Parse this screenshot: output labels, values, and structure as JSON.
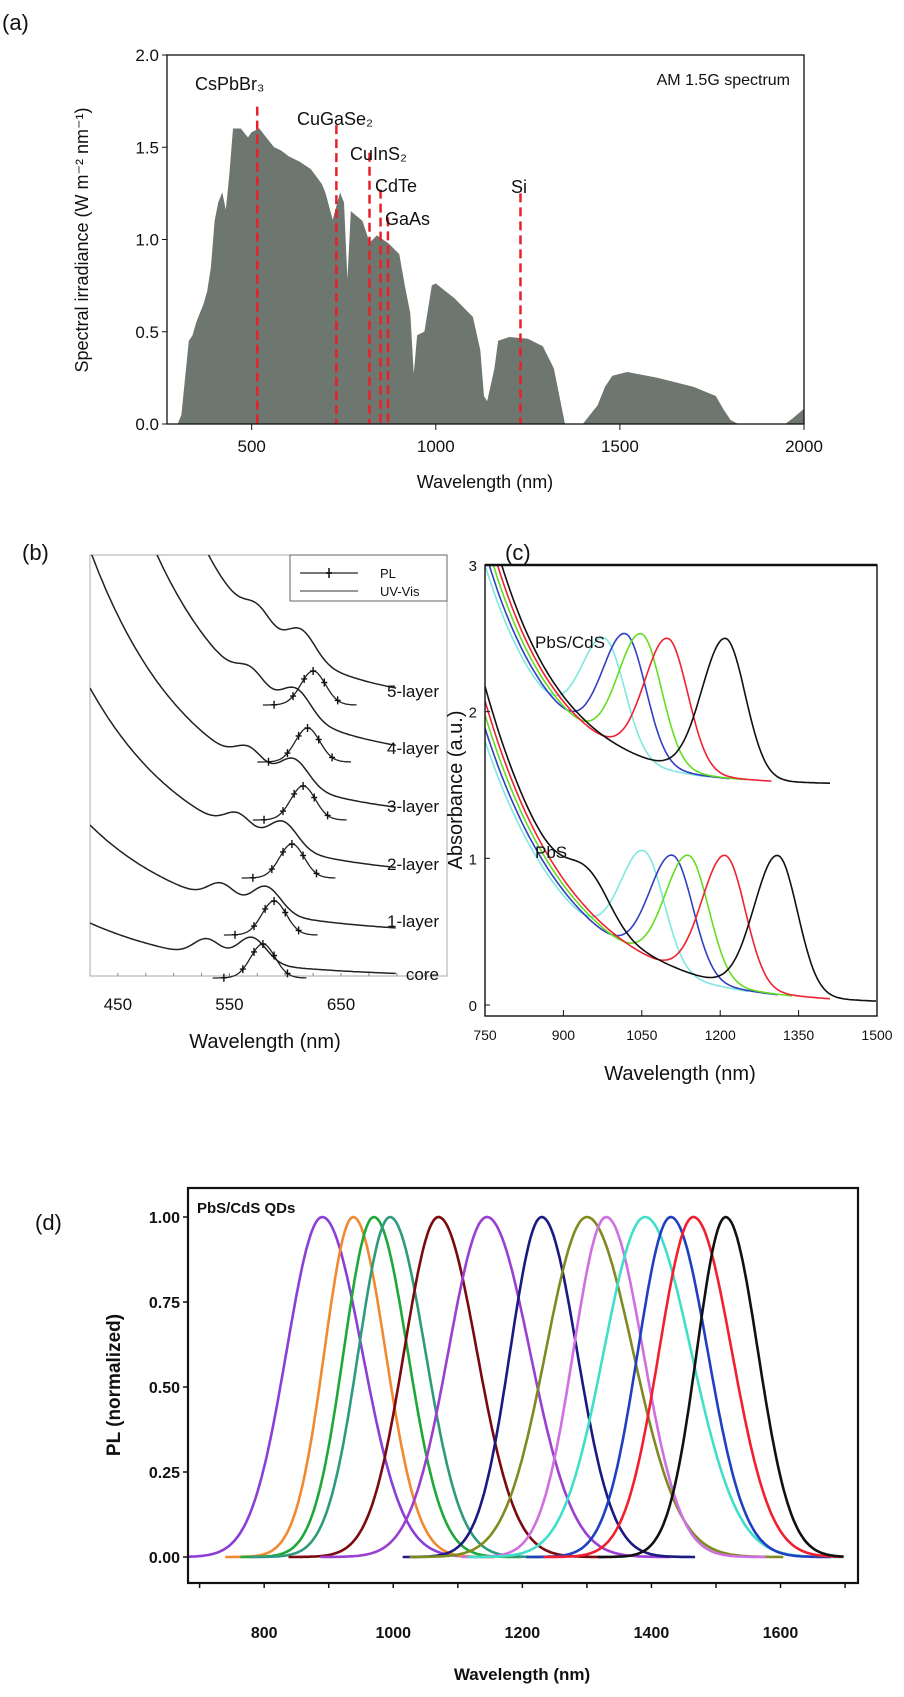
{
  "chart_data": [
    {
      "panel": "(a)",
      "type": "area",
      "xlabel": "Wavelength (nm)",
      "ylabel": "Spectral irradiance (W m⁻² nm⁻¹)",
      "xlim": [
        270,
        2000
      ],
      "ylim": [
        0,
        2.0
      ],
      "xticks": [
        "500",
        "1000",
        "1500",
        "2000"
      ],
      "yticks": [
        "0.0",
        "0.5",
        "1.0",
        "1.5",
        "2.0"
      ],
      "annotation": "AM 1.5G spectrum",
      "fill_color": "#6e7670",
      "spectrum": [
        [
          280,
          0
        ],
        [
          300,
          0
        ],
        [
          310,
          0.05
        ],
        [
          320,
          0.25
        ],
        [
          330,
          0.45
        ],
        [
          340,
          0.48
        ],
        [
          350,
          0.55
        ],
        [
          370,
          0.65
        ],
        [
          380,
          0.72
        ],
        [
          390,
          0.85
        ],
        [
          400,
          1.1
        ],
        [
          410,
          1.2
        ],
        [
          420,
          1.25
        ],
        [
          430,
          1.15
        ],
        [
          440,
          1.35
        ],
        [
          450,
          1.6
        ],
        [
          470,
          1.6
        ],
        [
          490,
          1.55
        ],
        [
          500,
          1.58
        ],
        [
          520,
          1.6
        ],
        [
          540,
          1.55
        ],
        [
          560,
          1.5
        ],
        [
          580,
          1.48
        ],
        [
          600,
          1.45
        ],
        [
          630,
          1.42
        ],
        [
          660,
          1.38
        ],
        [
          690,
          1.3
        ],
        [
          700,
          1.25
        ],
        [
          720,
          1.1
        ],
        [
          740,
          1.25
        ],
        [
          750,
          1.2
        ],
        [
          760,
          0.75
        ],
        [
          770,
          1.15
        ],
        [
          800,
          1.1
        ],
        [
          820,
          0.98
        ],
        [
          840,
          1.02
        ],
        [
          870,
          0.98
        ],
        [
          900,
          0.92
        ],
        [
          915,
          0.75
        ],
        [
          930,
          0.6
        ],
        [
          940,
          0.25
        ],
        [
          950,
          0.48
        ],
        [
          970,
          0.5
        ],
        [
          990,
          0.75
        ],
        [
          1000,
          0.76
        ],
        [
          1050,
          0.68
        ],
        [
          1100,
          0.58
        ],
        [
          1120,
          0.4
        ],
        [
          1130,
          0.15
        ],
        [
          1140,
          0.12
        ],
        [
          1160,
          0.3
        ],
        [
          1170,
          0.45
        ],
        [
          1200,
          0.47
        ],
        [
          1250,
          0.46
        ],
        [
          1290,
          0.42
        ],
        [
          1320,
          0.3
        ],
        [
          1340,
          0.1
        ],
        [
          1350,
          0
        ],
        [
          1400,
          0
        ],
        [
          1420,
          0.05
        ],
        [
          1440,
          0.1
        ],
        [
          1460,
          0.2
        ],
        [
          1480,
          0.26
        ],
        [
          1520,
          0.28
        ],
        [
          1600,
          0.25
        ],
        [
          1700,
          0.2
        ],
        [
          1760,
          0.15
        ],
        [
          1780,
          0.08
        ],
        [
          1800,
          0.02
        ],
        [
          1820,
          0
        ],
        [
          1950,
          0
        ],
        [
          1970,
          0.03
        ],
        [
          2000,
          0.08
        ]
      ],
      "markers": [
        {
          "label": "CsPbBr₃",
          "x": 515,
          "top": 1.72
        },
        {
          "label": "CuGaSe₂",
          "x": 730,
          "top": 1.62
        },
        {
          "label": "CuInS₂",
          "x": 820,
          "top": 1.47
        },
        {
          "label": "CdTe",
          "x": 850,
          "top": 1.27
        },
        {
          "label": "GaAs",
          "x": 870,
          "top": 1.12
        },
        {
          "label": "Si",
          "x": 1230,
          "top": 1.25
        }
      ],
      "marker_color": "#e8202a"
    },
    {
      "panel": "(b)",
      "type": "line",
      "xlabel": "Wavelength (nm)",
      "xlim": [
        425,
        745
      ],
      "xticks": [
        "450",
        "550",
        "650"
      ],
      "legend": [
        "PL",
        "UV-Vis"
      ],
      "legend_position": "top-right",
      "series": [
        {
          "name": "core",
          "uvvis_peak": 570,
          "pl_peak": 580
        },
        {
          "name": "1-layer",
          "uvvis_peak": 583,
          "pl_peak": 590
        },
        {
          "name": "2-layer",
          "uvvis_peak": 598,
          "pl_peak": 606
        },
        {
          "name": "3-layer",
          "uvvis_peak": 608,
          "pl_peak": 616
        },
        {
          "name": "4-layer",
          "uvvis_peak": 610,
          "pl_peak": 620
        },
        {
          "name": "5-layer",
          "uvvis_peak": 613,
          "pl_peak": 625
        }
      ]
    },
    {
      "panel": "(c)",
      "type": "line",
      "xlabel": "Wavelength (nm)",
      "ylabel": "Absorbance (a.u.)",
      "xlim": [
        750,
        1500
      ],
      "ylim": [
        -0.1,
        3
      ],
      "xticks": [
        "750",
        "900",
        "1050",
        "1200",
        "1350",
        "1500"
      ],
      "yticks": [
        "0",
        "1",
        "2",
        "3"
      ],
      "groups": [
        {
          "label": "PbS/CdS",
          "offset": 1.5,
          "series": [
            {
              "color": "#7fe8e0",
              "peak": 980,
              "peak_value": 2.5
            },
            {
              "color": "#3040c0",
              "peak": 1020,
              "peak_value": 2.53
            },
            {
              "color": "#66dd22",
              "peak": 1050,
              "peak_value": 2.53
            },
            {
              "color": "#ee2233",
              "peak": 1100,
              "peak_value": 2.5
            },
            {
              "color": "#111111",
              "peak": 1210,
              "peak_value": 2.5
            }
          ]
        },
        {
          "label": "PbS",
          "offset": 0,
          "series": [
            {
              "color": "#7fe8e0",
              "peak": 1055,
              "peak_value": 1.05
            },
            {
              "color": "#3040c0",
              "peak": 1110,
              "peak_value": 1.02
            },
            {
              "color": "#66dd22",
              "peak": 1140,
              "peak_value": 1.02
            },
            {
              "color": "#ee2233",
              "peak": 1210,
              "peak_value": 1.02
            },
            {
              "color": "#111111",
              "peak": 1310,
              "peak_value": 1.02
            }
          ]
        }
      ]
    },
    {
      "panel": "(d)",
      "type": "line",
      "xlabel": "Wavelength (nm)",
      "ylabel": "PL (normalized)",
      "xlim": [
        682,
        1720
      ],
      "ylim": [
        -0.075,
        1.085
      ],
      "xticks": [
        "800",
        "1000",
        "1200",
        "1400",
        "1600"
      ],
      "yticks": [
        "0.00",
        "0.25",
        "0.50",
        "0.75",
        "1.00"
      ],
      "annotation": "PbS/CdS QDs",
      "series": [
        {
          "color": "#8a3fd8",
          "peak": 890,
          "fwhm": 130
        },
        {
          "color": "#f08a30",
          "peak": 938,
          "fwhm": 105
        },
        {
          "color": "#1fa83a",
          "peak": 970,
          "fwhm": 110
        },
        {
          "color": "#2e9a7e",
          "peak": 995,
          "fwhm": 115
        },
        {
          "color": "#7a0a10",
          "peak": 1070,
          "fwhm": 125
        },
        {
          "color": "#9a3fd0",
          "peak": 1145,
          "fwhm": 140
        },
        {
          "color": "#1a1a80",
          "peak": 1230,
          "fwhm": 115
        },
        {
          "color": "#7f8a20",
          "peak": 1300,
          "fwhm": 150
        },
        {
          "color": "#d070e0",
          "peak": 1330,
          "fwhm": 120
        },
        {
          "color": "#40e0c8",
          "peak": 1390,
          "fwhm": 150
        },
        {
          "color": "#2040c0",
          "peak": 1430,
          "fwhm": 120
        },
        {
          "color": "#f02030",
          "peak": 1465,
          "fwhm": 125
        },
        {
          "color": "#111111",
          "peak": 1515,
          "fwhm": 105
        }
      ]
    }
  ]
}
